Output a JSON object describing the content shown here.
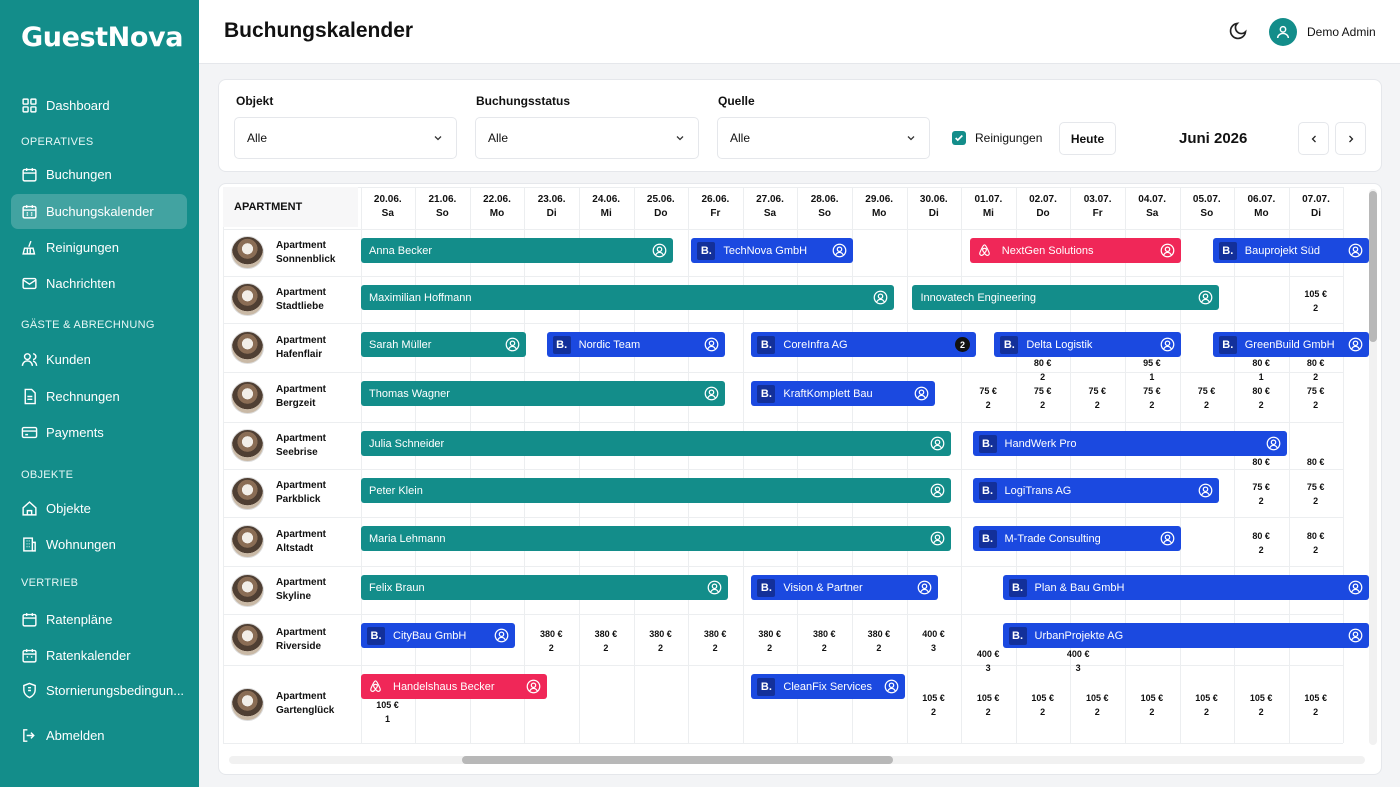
{
  "app": {
    "logo": "GuestNova",
    "user": "Demo Admin"
  },
  "sidebar": {
    "dashboard": "Dashboard",
    "sections": [
      "OPERATIVES",
      "GÄSTE & ABRECHNUNG",
      "OBJEKTE",
      "VERTRIEB"
    ],
    "items": [
      "Buchungen",
      "Buchungskalender",
      "Reinigungen",
      "Nachrichten",
      "Kunden",
      "Rechnungen",
      "Payments",
      "Objekte",
      "Wohnungen",
      "Ratenpläne",
      "Ratenkalender",
      "Stornierungsbedingun..."
    ],
    "logout": "Abmelden",
    "active": "Buchungskalender"
  },
  "header": {
    "title": "Buchungskalender"
  },
  "filters": {
    "objekt_label": "Objekt",
    "objekt_value": "Alle",
    "status_label": "Buchungsstatus",
    "status_value": "Alle",
    "quelle_label": "Quelle",
    "quelle_value": "Alle",
    "cleanings_label": "Reinigungen",
    "cleanings_checked": true,
    "today_label": "Heute",
    "month": "Juni 2026"
  },
  "calendar": {
    "apartment_header": "APARTMENT",
    "dates": [
      [
        "20.06.",
        "Sa"
      ],
      [
        "21.06.",
        "So"
      ],
      [
        "22.06.",
        "Mo"
      ],
      [
        "23.06.",
        "Di"
      ],
      [
        "24.06.",
        "Mi"
      ],
      [
        "25.06.",
        "Do"
      ],
      [
        "26.06.",
        "Fr"
      ],
      [
        "27.06.",
        "Sa"
      ],
      [
        "28.06.",
        "So"
      ],
      [
        "29.06.",
        "Mo"
      ],
      [
        "30.06.",
        "Di"
      ],
      [
        "01.07.",
        "Mi"
      ],
      [
        "02.07.",
        "Do"
      ],
      [
        "03.07.",
        "Fr"
      ],
      [
        "04.07.",
        "Sa"
      ],
      [
        "05.07.",
        "So"
      ],
      [
        "06.07.",
        "Mo"
      ],
      [
        "07.07.",
        "Di"
      ]
    ],
    "apartments": [
      [
        "Apartment",
        "Sonnenblick"
      ],
      [
        "Apartment",
        "Stadtliebe"
      ],
      [
        "Apartment",
        "Hafenflair"
      ],
      [
        "Apartment",
        "Bergzeit"
      ],
      [
        "Apartment",
        "Seebrise"
      ],
      [
        "Apartment",
        "Parkblick"
      ],
      [
        "Apartment",
        "Altstadt"
      ],
      [
        "Apartment",
        "Skyline"
      ],
      [
        "Apartment",
        "Riverside"
      ],
      [
        "Apartment",
        "Gartenglück"
      ]
    ],
    "bookings": [
      {
        "row": 0,
        "start": 0,
        "end": 5.75,
        "name": "Anna Becker",
        "color": "teal",
        "icon": "user"
      },
      {
        "row": 0,
        "start": 6.05,
        "end": 9.05,
        "name": "TechNova GmbH",
        "color": "blue",
        "b": "B.",
        "icon": "user"
      },
      {
        "row": 0,
        "start": 11.15,
        "end": 15.05,
        "name": "NextGen Solutions",
        "color": "red",
        "airbnb": true,
        "icon": "user"
      },
      {
        "row": 0,
        "start": 15.6,
        "end": 18.5,
        "name": "Bauprojekt Süd",
        "color": "blue",
        "b": "B.",
        "icon": "user"
      },
      {
        "row": 1,
        "start": 0,
        "end": 9.8,
        "name": "Maximilian Hoffmann",
        "color": "teal",
        "icon": "user"
      },
      {
        "row": 1,
        "start": 10.1,
        "end": 15.75,
        "name": "Innovatech Engineering",
        "color": "teal",
        "icon": "user"
      },
      {
        "row": 2,
        "start": 0,
        "end": 3.05,
        "name": "Sarah Müller",
        "color": "teal",
        "icon": "user"
      },
      {
        "row": 2,
        "start": 3.4,
        "end": 6.7,
        "name": "Nordic Team",
        "color": "blue",
        "b": "B.",
        "icon": "user"
      },
      {
        "row": 2,
        "start": 7.15,
        "end": 11.3,
        "name": "CoreInfra AG",
        "color": "blue",
        "b": "B.",
        "count": "2"
      },
      {
        "row": 2,
        "start": 11.6,
        "end": 15.05,
        "name": "Delta Logistik",
        "color": "blue",
        "b": "B.",
        "icon": "user"
      },
      {
        "row": 2,
        "start": 15.6,
        "end": 18.5,
        "name": "GreenBuild GmbH",
        "color": "blue",
        "b": "B.",
        "icon": "user"
      },
      {
        "row": 3,
        "start": 0,
        "end": 6.7,
        "name": "Thomas Wagner",
        "color": "teal",
        "icon": "user"
      },
      {
        "row": 3,
        "start": 7.15,
        "end": 10.55,
        "name": "KraftKomplett Bau",
        "color": "blue",
        "b": "B.",
        "icon": "user"
      },
      {
        "row": 4,
        "start": 0,
        "end": 10.85,
        "name": "Julia Schneider",
        "color": "teal",
        "icon": "user"
      },
      {
        "row": 4,
        "start": 11.2,
        "end": 17.0,
        "name": "HandWerk Pro",
        "color": "blue",
        "b": "B.",
        "icon": "user"
      },
      {
        "row": 5,
        "start": 0,
        "end": 10.85,
        "name": "Peter Klein",
        "color": "teal",
        "icon": "user"
      },
      {
        "row": 5,
        "start": 11.2,
        "end": 15.75,
        "name": "LogiTrans AG",
        "color": "blue",
        "b": "B.",
        "icon": "user"
      },
      {
        "row": 6,
        "start": 0,
        "end": 10.85,
        "name": "Maria Lehmann",
        "color": "teal",
        "icon": "user"
      },
      {
        "row": 6,
        "start": 11.2,
        "end": 15.05,
        "name": "M-Trade Consulting",
        "color": "blue",
        "b": "B.",
        "icon": "user"
      },
      {
        "row": 7,
        "start": 0,
        "end": 6.75,
        "name": "Felix Braun",
        "color": "teal",
        "icon": "user"
      },
      {
        "row": 7,
        "start": 7.15,
        "end": 10.6,
        "name": "Vision & Partner",
        "color": "blue",
        "b": "B.",
        "icon": "user"
      },
      {
        "row": 7,
        "start": 11.75,
        "end": 18.5,
        "name": "Plan & Bau GmbH",
        "color": "blue",
        "b": "B.",
        "icon": "user"
      },
      {
        "row": 8,
        "start": 0,
        "end": 2.85,
        "name": "CityBau GmbH",
        "color": "blue",
        "b": "B.",
        "icon": "user"
      },
      {
        "row": 8,
        "start": 11.75,
        "end": 18.5,
        "name": "UrbanProjekte AG",
        "color": "blue",
        "b": "B.",
        "icon": "user"
      },
      {
        "row": 9,
        "start": 0,
        "end": 3.45,
        "name": "Handelshaus Becker",
        "color": "red",
        "airbnb": true,
        "icon": "user"
      },
      {
        "row": 9,
        "start": 7.15,
        "end": 10.0,
        "name": "CleanFix Services",
        "color": "blue",
        "b": "B.",
        "icon": "user"
      }
    ],
    "prices": [
      {
        "row": 1,
        "col": 17,
        "y": 0.5,
        "v": "105 €",
        "n": "2"
      },
      {
        "row": 2,
        "col": 12,
        "y": 1,
        "v": "80 €",
        "n": "2"
      },
      {
        "row": 2,
        "col": 14,
        "y": 1,
        "v": "95 €",
        "n": "1"
      },
      {
        "row": 2,
        "col": 16,
        "y": 1,
        "v": "80 €",
        "n": "1"
      },
      {
        "row": 2,
        "col": 17,
        "y": 1,
        "v": "80 €",
        "n": "2"
      },
      {
        "row": 3,
        "col": 11,
        "y": 0.5,
        "v": "75 €",
        "n": "2"
      },
      {
        "row": 3,
        "col": 12,
        "y": 0.5,
        "v": "75 €",
        "n": "2"
      },
      {
        "row": 3,
        "col": 13,
        "y": 0.5,
        "v": "75 €",
        "n": "2"
      },
      {
        "row": 3,
        "col": 14,
        "y": 0.5,
        "v": "75 €",
        "n": "2"
      },
      {
        "row": 3,
        "col": 15,
        "y": 0.5,
        "v": "75 €",
        "n": "2"
      },
      {
        "row": 3,
        "col": 16,
        "y": 0.5,
        "v": "80 €",
        "n": "2"
      },
      {
        "row": 3,
        "col": 17,
        "y": 0.5,
        "v": "75 €",
        "n": "2"
      },
      {
        "row": 4,
        "col": 16,
        "y": 1,
        "v": "80 €",
        "n": ""
      },
      {
        "row": 4,
        "col": 17,
        "y": 1,
        "v": "80 €",
        "n": ""
      },
      {
        "row": 5,
        "col": 16,
        "y": 0.5,
        "v": "75 €",
        "n": "2"
      },
      {
        "row": 5,
        "col": 17,
        "y": 0.5,
        "v": "75 €",
        "n": "2"
      },
      {
        "row": 6,
        "col": 16,
        "y": 0.5,
        "v": "80 €",
        "n": "2"
      },
      {
        "row": 6,
        "col": 17,
        "y": 0.5,
        "v": "80 €",
        "n": "2"
      },
      {
        "row": 8,
        "col": 3,
        "y": 0.5,
        "v": "380 €",
        "n": "2"
      },
      {
        "row": 8,
        "col": 4,
        "y": 0.5,
        "v": "380 €",
        "n": "2"
      },
      {
        "row": 8,
        "col": 5,
        "y": 0.5,
        "v": "380 €",
        "n": "2"
      },
      {
        "row": 8,
        "col": 6,
        "y": 0.5,
        "v": "380 €",
        "n": "2"
      },
      {
        "row": 8,
        "col": 7,
        "y": 0.5,
        "v": "380 €",
        "n": "2"
      },
      {
        "row": 8,
        "col": 8,
        "y": 0.5,
        "v": "380 €",
        "n": "2"
      },
      {
        "row": 8,
        "col": 9,
        "y": 0.5,
        "v": "380 €",
        "n": "2"
      },
      {
        "row": 8,
        "col": 10,
        "y": 0.5,
        "v": "400 €",
        "n": "3"
      },
      {
        "row": 8,
        "col": 11,
        "y": 1,
        "v": "400 €",
        "n": "3"
      },
      {
        "row": 8,
        "col": 12.65,
        "y": 1,
        "v": "400 €",
        "n": "3"
      },
      {
        "row": 9,
        "col": 0,
        "y": 1,
        "v": "105 €",
        "n": "1"
      },
      {
        "row": 9,
        "col": 10,
        "y": 0.5,
        "v": "105 €",
        "n": "2"
      },
      {
        "row": 9,
        "col": 11,
        "y": 0.5,
        "v": "105 €",
        "n": "2"
      },
      {
        "row": 9,
        "col": 12,
        "y": 0.5,
        "v": "105 €",
        "n": "2"
      },
      {
        "row": 9,
        "col": 13,
        "y": 0.5,
        "v": "105 €",
        "n": "2"
      },
      {
        "row": 9,
        "col": 14,
        "y": 0.5,
        "v": "105 €",
        "n": "2"
      },
      {
        "row": 9,
        "col": 15,
        "y": 0.5,
        "v": "105 €",
        "n": "2"
      },
      {
        "row": 9,
        "col": 16,
        "y": 0.5,
        "v": "105 €",
        "n": "2"
      },
      {
        "row": 9,
        "col": 17,
        "y": 0.5,
        "v": "105 €",
        "n": "2"
      }
    ]
  },
  "colors": {
    "brand": "#138d8a",
    "booking_blue": "#1b49e0",
    "airbnb_red": "#f02758"
  }
}
